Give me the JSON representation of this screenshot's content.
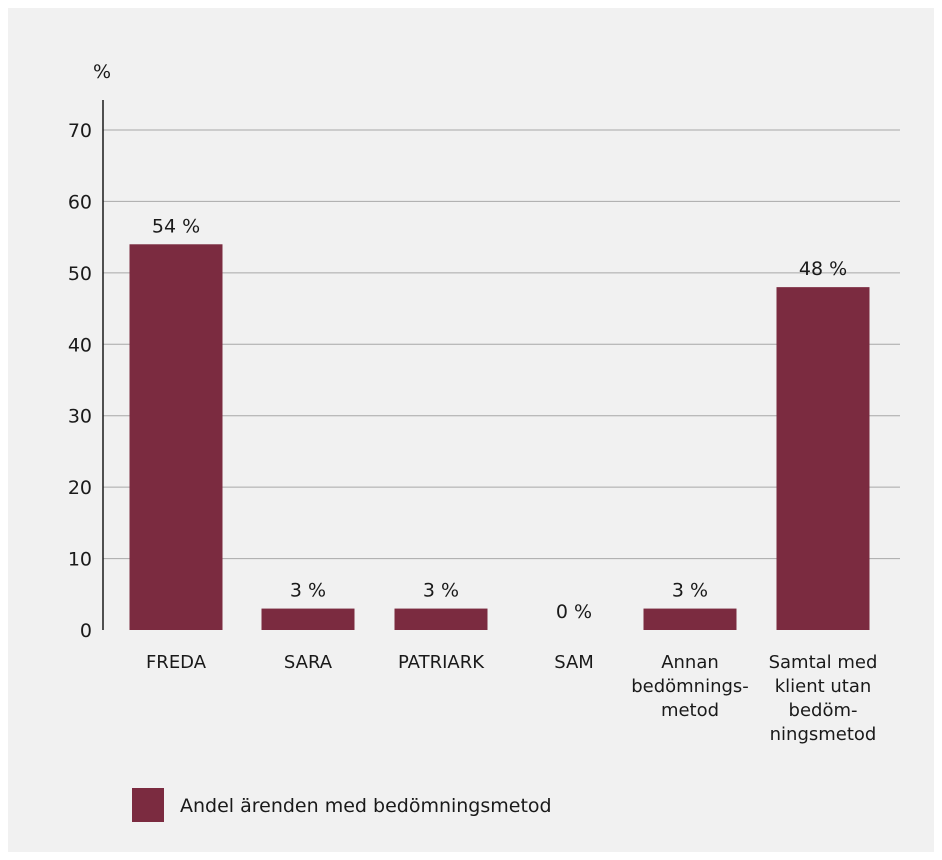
{
  "chart_data": {
    "type": "bar",
    "y_unit": "%",
    "ylim": [
      0,
      70
    ],
    "yticks": [
      0,
      10,
      20,
      30,
      40,
      50,
      60,
      70
    ],
    "grid": true,
    "categories": [
      [
        "FREDA"
      ],
      [
        "SARA"
      ],
      [
        "PATRIARK"
      ],
      [
        "SAM"
      ],
      [
        "Annan",
        "bedömnings-",
        "metod"
      ],
      [
        "Samtal med",
        "klient utan",
        "bedöm-",
        "ningsmetod"
      ]
    ],
    "series": [
      {
        "name": "Andel ärenden med bedömningsmetod",
        "values": [
          54,
          3,
          3,
          0,
          3,
          48
        ],
        "data_labels": [
          "54 %",
          "3 %",
          "3 %",
          "0 %",
          "3 %",
          "48 %"
        ],
        "color": "#7b2b40"
      }
    ],
    "legend_position": "bottom-left"
  }
}
